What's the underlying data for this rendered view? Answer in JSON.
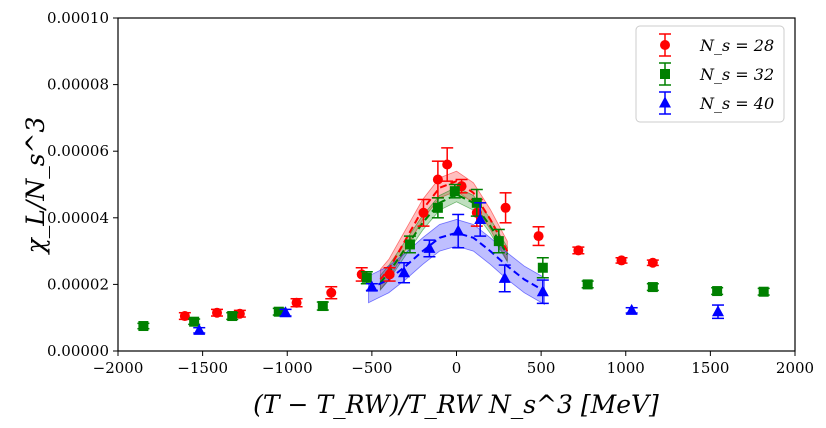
{
  "chart_data": {
    "type": "scatter",
    "xlabel": "(T − T_RW)/T_RW  N_s^3 [MeV]",
    "ylabel": "χ_L/N_s^3",
    "xlim": [
      -2000,
      2000
    ],
    "ylim": [
      0,
      0.0001
    ],
    "x_ticks": [
      -2000,
      -1500,
      -1000,
      -500,
      0,
      500,
      1000,
      1500,
      2000
    ],
    "x_tick_labels": [
      "−2000",
      "−1500",
      "−1000",
      "−500",
      "0",
      "500",
      "1000",
      "1500",
      "2000"
    ],
    "y_ticks": [
      0,
      2e-05,
      4e-05,
      6e-05,
      8e-05,
      0.0001
    ],
    "y_tick_labels": [
      "0.00000",
      "0.00002",
      "0.00004",
      "0.00006",
      "0.00008",
      "0.00010"
    ],
    "legend_position": "top-right",
    "series": [
      {
        "name": "N_s = 28",
        "legend_label": "N_s = 28",
        "color": "#ff0000",
        "marker": "circle",
        "points": [
          {
            "x": -1605,
            "y": 1.05e-05,
            "err": 1e-06
          },
          {
            "x": -1415,
            "y": 1.15e-05,
            "err": 1e-06
          },
          {
            "x": -1280,
            "y": 1.12e-05,
            "err": 1e-06
          },
          {
            "x": -945,
            "y": 1.45e-05,
            "err": 1.2e-06
          },
          {
            "x": -740,
            "y": 1.75e-05,
            "err": 1.8e-06
          },
          {
            "x": -560,
            "y": 2.3e-05,
            "err": 2e-06
          },
          {
            "x": -395,
            "y": 2.3e-05,
            "err": 2e-06
          },
          {
            "x": -195,
            "y": 4.15e-05,
            "err": 4e-06
          },
          {
            "x": -110,
            "y": 5.15e-05,
            "err": 5.5e-06
          },
          {
            "x": -55,
            "y": 5.6e-05,
            "err": 5e-06
          },
          {
            "x": 30,
            "y": 4.95e-05,
            "err": 2e-06
          },
          {
            "x": 120,
            "y": 4.15e-05,
            "err": 4e-06
          },
          {
            "x": 290,
            "y": 4.3e-05,
            "err": 4.5e-06
          },
          {
            "x": 485,
            "y": 3.45e-05,
            "err": 2.8e-06
          },
          {
            "x": 720,
            "y": 3.02e-05,
            "err": 1e-06
          },
          {
            "x": 975,
            "y": 2.72e-05,
            "err": 8e-07
          },
          {
            "x": 1160,
            "y": 2.65e-05,
            "err": 8e-07
          }
        ],
        "fit_x": [
          -450,
          -400,
          -300,
          -200,
          -100,
          0,
          100,
          200,
          300
        ],
        "fit_y": [
          2.15e-05,
          2.45e-05,
          3.35e-05,
          4.25e-05,
          4.9e-05,
          5.1e-05,
          4.75e-05,
          3.95e-05,
          3e-05
        ],
        "band_err": 3e-06
      },
      {
        "name": "N_s = 32",
        "legend_label": "N_s = 32",
        "color": "#008000",
        "marker": "square",
        "points": [
          {
            "x": -1850,
            "y": 7.5e-06,
            "err": 8e-07
          },
          {
            "x": -1550,
            "y": 8.8e-06,
            "err": 8e-07
          },
          {
            "x": -1325,
            "y": 1.05e-05,
            "err": 1e-06
          },
          {
            "x": -1050,
            "y": 1.18e-05,
            "err": 1e-06
          },
          {
            "x": -790,
            "y": 1.35e-05,
            "err": 1.2e-06
          },
          {
            "x": -530,
            "y": 2.2e-05,
            "err": 1.8e-06
          },
          {
            "x": -275,
            "y": 3.2e-05,
            "err": 2.5e-06
          },
          {
            "x": -110,
            "y": 4.3e-05,
            "err": 3e-06
          },
          {
            "x": -10,
            "y": 4.8e-05,
            "err": 2e-06
          },
          {
            "x": 120,
            "y": 4.45e-05,
            "err": 4e-06
          },
          {
            "x": 250,
            "y": 3.3e-05,
            "err": 3.5e-06
          },
          {
            "x": 510,
            "y": 2.5e-05,
            "err": 3e-06
          },
          {
            "x": 775,
            "y": 2e-05,
            "err": 1e-06
          },
          {
            "x": 1160,
            "y": 1.92e-05,
            "err": 1e-06
          },
          {
            "x": 1540,
            "y": 1.8e-05,
            "err": 1e-06
          },
          {
            "x": 1815,
            "y": 1.78e-05,
            "err": 1e-06
          }
        ],
        "fit_x": [
          -450,
          -400,
          -300,
          -200,
          -100,
          0,
          100,
          200,
          300
        ],
        "fit_y": [
          2.05e-05,
          2.35e-05,
          3.1e-05,
          3.85e-05,
          4.45e-05,
          4.7e-05,
          4.45e-05,
          3.75e-05,
          2.9e-05
        ],
        "band_err": 2.2e-06
      },
      {
        "name": "N_s = 40",
        "legend_label": "N_s = 40",
        "color": "#0000ff",
        "marker": "triangle",
        "points": [
          {
            "x": -1520,
            "y": 6.2e-06,
            "err": 8e-07
          },
          {
            "x": -1010,
            "y": 1.15e-05,
            "err": 1e-06
          },
          {
            "x": -500,
            "y": 1.92e-05,
            "err": 1e-06
          },
          {
            "x": -310,
            "y": 2.35e-05,
            "err": 3e-06
          },
          {
            "x": -160,
            "y": 3.08e-05,
            "err": 2.5e-06
          },
          {
            "x": 10,
            "y": 3.6e-05,
            "err": 5e-06
          },
          {
            "x": 140,
            "y": 3.95e-05,
            "err": 5e-06
          },
          {
            "x": 285,
            "y": 2.18e-05,
            "err": 4e-06
          },
          {
            "x": 510,
            "y": 1.78e-05,
            "err": 3.5e-06
          },
          {
            "x": 1035,
            "y": 1.22e-05,
            "err": 8e-07
          },
          {
            "x": 1545,
            "y": 1.18e-05,
            "err": 2e-06
          }
        ],
        "fit_x": [
          -520,
          -400,
          -300,
          -200,
          -100,
          0,
          100,
          200,
          300,
          400,
          520
        ],
        "fit_y": [
          1.85e-05,
          2.15e-05,
          2.55e-05,
          3e-05,
          3.4e-05,
          3.55e-05,
          3.4e-05,
          3e-05,
          2.55e-05,
          2.15e-05,
          1.8e-05
        ],
        "band_err": 4e-06
      }
    ]
  }
}
